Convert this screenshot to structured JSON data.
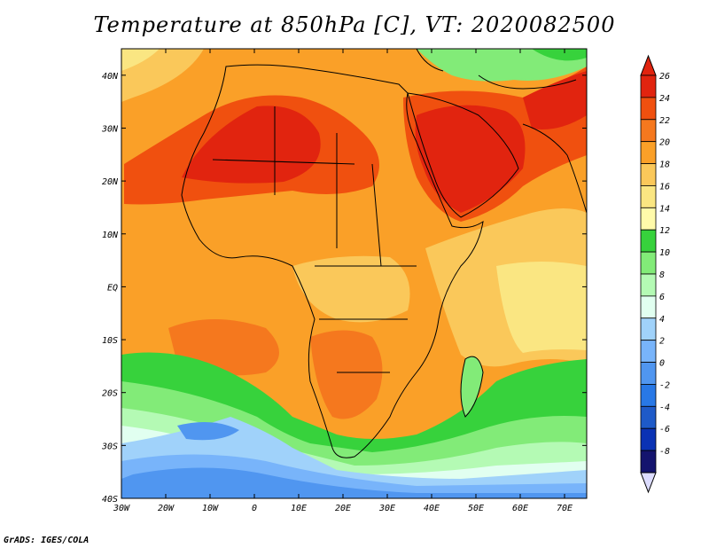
{
  "title": "Temperature at 850hPa [C], VT: 2020082500",
  "credit": "GrADS: IGES/COLA",
  "map": {
    "lon_ticks": [
      "30W",
      "20W",
      "10W",
      "0",
      "10E",
      "20E",
      "30E",
      "40E",
      "50E",
      "60E",
      "70E"
    ],
    "lat_ticks": [
      "40N",
      "30N",
      "20N",
      "10N",
      "EQ",
      "10S",
      "20S",
      "30S",
      "40S"
    ],
    "lon_range": [
      -30,
      75
    ],
    "lat_range": [
      -40,
      45
    ]
  },
  "colorbar": {
    "labels": [
      "26",
      "24",
      "22",
      "20",
      "18",
      "16",
      "14",
      "12",
      "10",
      "8",
      "6",
      "4",
      "2",
      "0",
      "-2",
      "-4",
      "-6",
      "-8"
    ],
    "colors": [
      "#e1240f",
      "#f0500f",
      "#f5781e",
      "#faa028",
      "#fac85a",
      "#fae682",
      "#fffaaa",
      "#37d23c",
      "#82eb78",
      "#b4fab4",
      "#e1fff0",
      "#a0d2fa",
      "#78b4fa",
      "#5096f0",
      "#2878e6",
      "#1e5ac8",
      "#0a32b4",
      "#14146e"
    ]
  }
}
